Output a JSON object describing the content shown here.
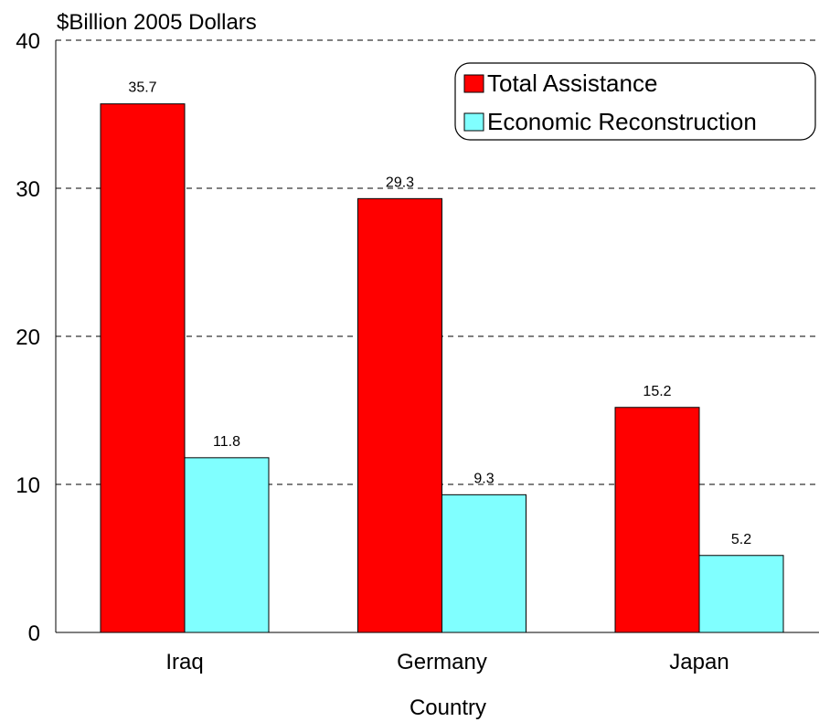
{
  "chart_data": {
    "type": "bar",
    "title": "",
    "ylabel": "$Billion 2005 Dollars",
    "xlabel": "Country",
    "categories": [
      "Iraq",
      "Germany",
      "Japan"
    ],
    "series": [
      {
        "name": "Total Assistance",
        "values": [
          35.7,
          29.3,
          15.2
        ],
        "color": "#ff0000"
      },
      {
        "name": "Economic Reconstruction",
        "values": [
          11.8,
          9.3,
          5.2
        ],
        "color": "#80ffff"
      }
    ],
    "data_labels": [
      [
        "35.7",
        "29.3",
        "15.2"
      ],
      [
        "11.8",
        "9.3",
        "5.2"
      ]
    ],
    "ylim": [
      0,
      40
    ],
    "yticks": [
      "0",
      "10",
      "20",
      "30",
      "40"
    ],
    "grid": "horizontal dashed",
    "legend": "top-right"
  }
}
